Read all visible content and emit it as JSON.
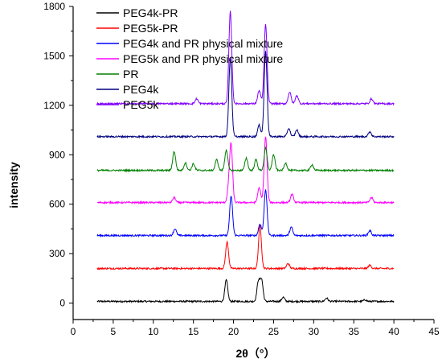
{
  "chart_data": {
    "type": "line",
    "title": "",
    "xlabel": "2θ（°）",
    "ylabel": "intensity",
    "xlim": [
      0,
      45
    ],
    "ylim": [
      -100,
      1800
    ],
    "xticks": [
      0,
      5,
      10,
      15,
      20,
      25,
      30,
      35,
      40,
      45
    ],
    "yticks": [
      0,
      300,
      600,
      900,
      1200,
      1500,
      1800
    ],
    "grid": false,
    "legend_position": "top-left",
    "series": [
      {
        "name": "PEG4k-PR",
        "color": "#000000",
        "baseline": 10,
        "peaks": [
          {
            "x": 19.1,
            "y": 140
          },
          {
            "x": 23.1,
            "y": 130
          },
          {
            "x": 23.5,
            "y": 140
          },
          {
            "x": 26.2,
            "y": 35
          },
          {
            "x": 31.6,
            "y": 30
          },
          {
            "x": 36.4,
            "y": 20
          }
        ]
      },
      {
        "name": "PEG5k-PR",
        "color": "#ff0000",
        "baseline": 210,
        "peaks": [
          {
            "x": 19.2,
            "y": 370
          },
          {
            "x": 23.3,
            "y": 470
          },
          {
            "x": 26.8,
            "y": 240
          },
          {
            "x": 37.0,
            "y": 230
          }
        ]
      },
      {
        "name": "PEG4k and PR physical mixture",
        "color": "#0000ff",
        "baseline": 410,
        "peaks": [
          {
            "x": 12.7,
            "y": 450
          },
          {
            "x": 19.7,
            "y": 650
          },
          {
            "x": 23.3,
            "y": 480
          },
          {
            "x": 24.0,
            "y": 690
          },
          {
            "x": 27.2,
            "y": 460
          },
          {
            "x": 37.0,
            "y": 440
          }
        ]
      },
      {
        "name": "PEG5k and PR physical mixture",
        "color": "#ff00ff",
        "baseline": 610,
        "peaks": [
          {
            "x": 12.6,
            "y": 640
          },
          {
            "x": 19.4,
            "y": 690
          },
          {
            "x": 19.7,
            "y": 950
          },
          {
            "x": 23.2,
            "y": 700
          },
          {
            "x": 24.0,
            "y": 1010
          },
          {
            "x": 27.3,
            "y": 660
          },
          {
            "x": 37.2,
            "y": 640
          }
        ]
      },
      {
        "name": "PR",
        "color": "#008000",
        "baseline": 805,
        "peaks": [
          {
            "x": 12.6,
            "y": 920
          },
          {
            "x": 14.0,
            "y": 850
          },
          {
            "x": 15.0,
            "y": 845
          },
          {
            "x": 17.9,
            "y": 870
          },
          {
            "x": 19.1,
            "y": 930
          },
          {
            "x": 21.6,
            "y": 880
          },
          {
            "x": 22.8,
            "y": 870
          },
          {
            "x": 24.0,
            "y": 940
          },
          {
            "x": 25.0,
            "y": 900
          },
          {
            "x": 26.5,
            "y": 850
          },
          {
            "x": 29.8,
            "y": 840
          }
        ]
      },
      {
        "name": "PEG4k",
        "color": "#000080",
        "baseline": 1010,
        "peaks": [
          {
            "x": 19.6,
            "y": 1490
          },
          {
            "x": 23.2,
            "y": 1080
          },
          {
            "x": 24.0,
            "y": 1530
          },
          {
            "x": 26.9,
            "y": 1060
          },
          {
            "x": 27.9,
            "y": 1050
          },
          {
            "x": 37.0,
            "y": 1040
          }
        ]
      },
      {
        "name": "PEG5k",
        "color": "#8000ff",
        "baseline": 1210,
        "peaks": [
          {
            "x": 15.4,
            "y": 1240
          },
          {
            "x": 19.6,
            "y": 1770
          },
          {
            "x": 23.2,
            "y": 1290
          },
          {
            "x": 24.0,
            "y": 1690
          },
          {
            "x": 27.0,
            "y": 1280
          },
          {
            "x": 27.9,
            "y": 1260
          },
          {
            "x": 37.2,
            "y": 1240
          }
        ]
      }
    ]
  }
}
